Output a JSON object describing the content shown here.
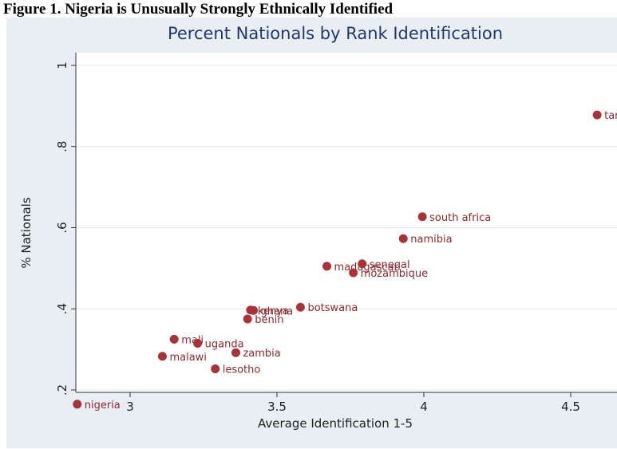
{
  "page": {
    "heading": "Figure 1. Nigeria is Unusually Strongly Ethnically Identified"
  },
  "chart_data": {
    "type": "scatter",
    "title": "Percent Nationals by Rank Identification",
    "xlabel": "Average Identification 1-5",
    "ylabel": "% Nationals",
    "xlim": [
      2.8,
      4.6
    ],
    "ylim": [
      0.15,
      1.0
    ],
    "x_ticks": [
      3,
      3.5,
      4,
      4.5
    ],
    "x_tick_labels": [
      "3",
      "3.5",
      "4",
      "4.5"
    ],
    "y_ticks": [
      0.2,
      0.4,
      0.6,
      0.8,
      1.0
    ],
    "y_tick_labels": [
      ".2",
      ".4",
      ".6",
      ".8",
      "1"
    ],
    "grid": true,
    "marker_color": "#a8343a",
    "label_color": "#8c2a2f",
    "title_color": "#1f3a68",
    "background_color": "#e9eef3",
    "points": [
      {
        "label": "nigeria",
        "x": 2.82,
        "y": 0.165
      },
      {
        "label": "malawi",
        "x": 3.11,
        "y": 0.283
      },
      {
        "label": "mali",
        "x": 3.15,
        "y": 0.325
      },
      {
        "label": "uganda",
        "x": 3.23,
        "y": 0.315
      },
      {
        "label": "lesotho",
        "x": 3.29,
        "y": 0.252
      },
      {
        "label": "zambia",
        "x": 3.36,
        "y": 0.292
      },
      {
        "label": "benin",
        "x": 3.4,
        "y": 0.375
      },
      {
        "label": "kenya",
        "x": 3.41,
        "y": 0.397
      },
      {
        "label": "ghana",
        "x": 3.42,
        "y": 0.396
      },
      {
        "label": "botswana",
        "x": 3.58,
        "y": 0.404
      },
      {
        "label": "madagascar",
        "x": 3.67,
        "y": 0.505
      },
      {
        "label": "mozambique",
        "x": 3.76,
        "y": 0.489
      },
      {
        "label": "senegal",
        "x": 3.79,
        "y": 0.511
      },
      {
        "label": "namibia",
        "x": 3.93,
        "y": 0.573
      },
      {
        "label": "south africa",
        "x": 3.995,
        "y": 0.627
      },
      {
        "label": "tanzania",
        "x": 4.59,
        "y": 0.878
      }
    ]
  }
}
